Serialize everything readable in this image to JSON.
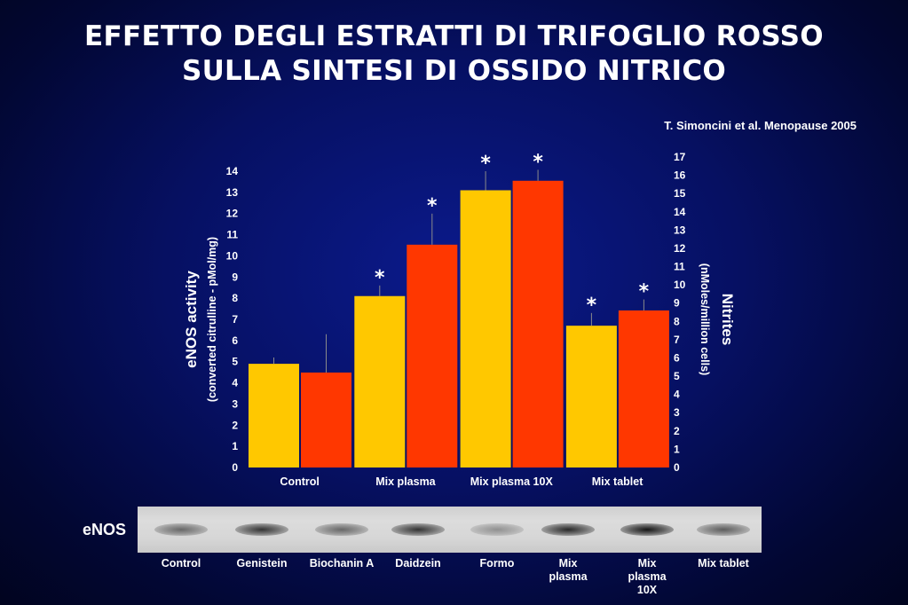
{
  "title_line1": "EFFETTO DEGLI ESTRATTI DI TRIFOGLIO ROSSO",
  "title_line2": "SULLA SINTESI DI OSSIDO NITRICO",
  "citation": "T. Simoncini et al. Menopause 2005",
  "chart_data": {
    "type": "bar",
    "categories": [
      "Control",
      "Mix plasma",
      "Mix plasma 10X",
      "Mix tablet"
    ],
    "series": [
      {
        "axis": "left",
        "color": "#ffc800",
        "values": [
          4.9,
          8.1,
          13.1,
          6.7
        ],
        "error_upper": [
          5.2,
          8.6,
          14.0,
          7.3
        ],
        "significance": [
          "",
          "*",
          "*",
          "*"
        ]
      },
      {
        "axis": "right",
        "color": "#ff3700",
        "values": [
          5.2,
          12.2,
          15.7,
          8.6
        ],
        "error_upper": [
          7.3,
          13.9,
          16.3,
          9.2
        ],
        "significance": [
          "",
          "*",
          "*",
          "*"
        ]
      }
    ],
    "ylabel_left": "eNOS activity",
    "ylabel_left_sub": "(converted citrulline - pMol/mg)",
    "ylim_left": [
      0,
      14
    ],
    "yticks_left": [
      "0",
      "1",
      "2",
      "3",
      "4",
      "5",
      "6",
      "7",
      "8",
      "9",
      "10",
      "11",
      "12",
      "13",
      "14"
    ],
    "ylabel_right": "Nitrites",
    "ylabel_right_sub": "(nMoles/million cells)",
    "ylim_right": [
      0,
      17
    ],
    "yticks_right": [
      "0",
      "1",
      "2",
      "3",
      "4",
      "5",
      "6",
      "7",
      "8",
      "9",
      "10",
      "11",
      "12",
      "13",
      "14",
      "15",
      "16",
      "17"
    ],
    "significance_marker": "*",
    "grid": false,
    "legend": "none"
  },
  "blot": {
    "label": "eNOS",
    "lanes": [
      {
        "label": "Control",
        "intensity": 0.55
      },
      {
        "label": "Genistein",
        "intensity": 0.8
      },
      {
        "label": "Biochanin A",
        "intensity": 0.55
      },
      {
        "label": "Daidzein",
        "intensity": 0.8
      },
      {
        "label": "Formo",
        "intensity": 0.35
      },
      {
        "label": "Mix plasma",
        "intensity": 0.85
      },
      {
        "label": "Mix plasma 10X",
        "intensity": 0.95
      },
      {
        "label": "Mix tablet",
        "intensity": 0.6
      }
    ],
    "lane_label_lines": [
      [
        "Control"
      ],
      [
        "Genistein"
      ],
      [
        "Biochanin A"
      ],
      [
        "Daidzein"
      ],
      [
        "Formo"
      ],
      [
        "Mix",
        "plasma"
      ],
      [
        "Mix",
        "plasma",
        "10X"
      ],
      [
        "Mix tablet"
      ]
    ]
  }
}
